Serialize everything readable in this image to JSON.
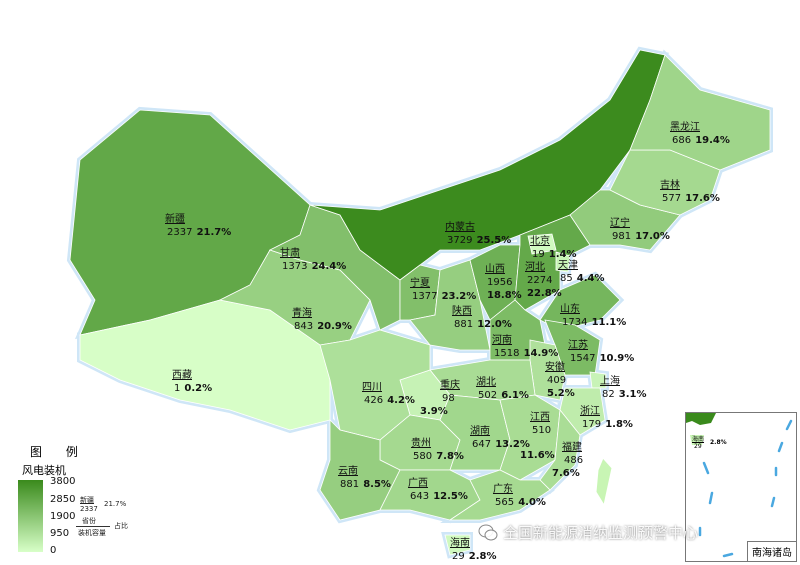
{
  "legend": {
    "title": "图 例",
    "subtitle": "风电装机",
    "ticks": [
      "3800",
      "2850",
      "1900",
      "950",
      "0"
    ],
    "color_low": "#d8ffc8",
    "color_high": "#3a8a1c",
    "example": {
      "province": "新疆",
      "value": "2337",
      "pct": "21.7%",
      "top_label": "省份",
      "bottom_label": "装机容量",
      "side_label": "占比"
    }
  },
  "provinces": [
    {
      "name": "新疆",
      "value": 2337,
      "pct": "21.7%"
    },
    {
      "name": "西藏",
      "value": 1,
      "pct": "0.2%"
    },
    {
      "name": "青海",
      "value": 843,
      "pct": "20.9%"
    },
    {
      "name": "甘肃",
      "value": 1373,
      "pct": "24.4%"
    },
    {
      "name": "内蒙古",
      "value": 3729,
      "pct": "25.5%"
    },
    {
      "name": "宁夏",
      "value": 1377,
      "pct": "23.2%"
    },
    {
      "name": "陕西",
      "value": 881,
      "pct": "12.0%"
    },
    {
      "name": "山西",
      "value": 1956,
      "pct": "18.8%"
    },
    {
      "name": "河北",
      "value": 2274,
      "pct": "22.8%"
    },
    {
      "name": "北京",
      "value": 19,
      "pct": "1.4%"
    },
    {
      "name": "天津",
      "value": 85,
      "pct": "4.4%"
    },
    {
      "name": "山东",
      "value": 1734,
      "pct": "11.1%"
    },
    {
      "name": "辽宁",
      "value": 981,
      "pct": "17.0%"
    },
    {
      "name": "吉林",
      "value": 577,
      "pct": "17.6%"
    },
    {
      "name": "黑龙江",
      "value": 686,
      "pct": "19.4%"
    },
    {
      "name": "河南",
      "value": 1518,
      "pct": "14.9%"
    },
    {
      "name": "江苏",
      "value": 1547,
      "pct": "10.9%"
    },
    {
      "name": "安徽",
      "value": 409,
      "pct": "5.2%"
    },
    {
      "name": "上海",
      "value": 82,
      "pct": "3.1%"
    },
    {
      "name": "浙江",
      "value": 179,
      "pct": "1.8%"
    },
    {
      "name": "湖北",
      "value": 502,
      "pct": "6.1%"
    },
    {
      "name": "重庆",
      "value": 98,
      "pct": "3.9%"
    },
    {
      "name": "四川",
      "value": 426,
      "pct": "4.2%"
    },
    {
      "name": "贵州",
      "value": 580,
      "pct": "7.8%"
    },
    {
      "name": "云南",
      "value": 881,
      "pct": "8.5%"
    },
    {
      "name": "湖南",
      "value": 647,
      "pct": "13.2%"
    },
    {
      "name": "江西",
      "value": 510,
      "pct": "11.6%"
    },
    {
      "name": "福建",
      "value": 486,
      "pct": "7.6%"
    },
    {
      "name": "广西",
      "value": 643,
      "pct": "12.5%"
    },
    {
      "name": "广东",
      "value": 565,
      "pct": "4.0%"
    },
    {
      "name": "海南",
      "value": 29,
      "pct": "2.8%"
    }
  ],
  "inset": {
    "label": "南海诸岛",
    "hainan_name": "海南",
    "hainan_value": "29",
    "hainan_pct": "2.8%"
  },
  "watermark": {
    "text": "全国新能源消纳监测预警中心",
    "icon": "wechat-icon"
  },
  "scale_max": 3800
}
